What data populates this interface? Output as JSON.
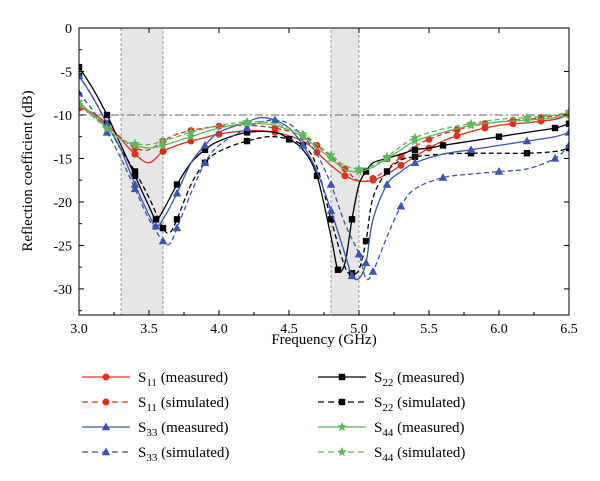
{
  "chart_data": {
    "type": "line",
    "title": "",
    "xlabel": "Frequency (GHz)",
    "ylabel": "Reflection coefficient (dB)",
    "xlim": [
      3.0,
      6.5
    ],
    "ylim": [
      -33,
      0
    ],
    "xticks": [
      "3.0",
      "3.5",
      "4.0",
      "4.5",
      "5.0",
      "5.5",
      "6.0",
      "6.5"
    ],
    "yticks": [
      "0",
      "-5",
      "-10",
      "-15",
      "-20",
      "-25",
      "-30"
    ],
    "reference_line_db": -10,
    "shaded_bands": [
      [
        3.3,
        3.6
      ],
      [
        4.8,
        5.0
      ]
    ],
    "grid": false,
    "legend_position": "bottom",
    "series": [
      {
        "name": "S11 (measured)",
        "label_main": "S",
        "label_sub": "11",
        "label_rest": " (measured)",
        "color": "#e0301e",
        "dash": "solid",
        "marker": "circle",
        "x": [
          3.0,
          3.1,
          3.2,
          3.3,
          3.4,
          3.5,
          3.6,
          3.7,
          3.8,
          3.9,
          4.0,
          4.2,
          4.4,
          4.6,
          4.7,
          4.8,
          4.9,
          5.0,
          5.1,
          5.2,
          5.3,
          5.4,
          5.5,
          5.6,
          5.7,
          5.8,
          5.9,
          6.0,
          6.1,
          6.2,
          6.3,
          6.4,
          6.5
        ],
        "y": [
          -9.0,
          -9.8,
          -11.0,
          -12.8,
          -14.5,
          -15.5,
          -14.2,
          -13.5,
          -13.0,
          -12.6,
          -12.2,
          -11.8,
          -12.0,
          -13.0,
          -14.3,
          -15.8,
          -17.0,
          -17.6,
          -17.5,
          -16.8,
          -15.8,
          -14.8,
          -13.8,
          -13.0,
          -12.4,
          -11.9,
          -11.5,
          -11.2,
          -11.0,
          -10.9,
          -10.7,
          -10.5,
          -10.0
        ]
      },
      {
        "name": "S11 (simulated)",
        "label_main": "S",
        "label_sub": "11",
        "label_rest": " (simulated)",
        "color": "#e0301e",
        "dash": "dashed",
        "marker": "circle",
        "x": [
          3.0,
          3.1,
          3.2,
          3.3,
          3.4,
          3.5,
          3.6,
          3.7,
          3.8,
          3.9,
          4.0,
          4.2,
          4.4,
          4.6,
          4.7,
          4.8,
          4.9,
          5.0,
          5.1,
          5.2,
          5.3,
          5.4,
          5.5,
          5.6,
          5.7,
          5.8,
          5.9,
          6.0,
          6.1,
          6.2,
          6.3,
          6.4,
          6.5
        ],
        "y": [
          -9.2,
          -10.0,
          -11.2,
          -12.6,
          -13.8,
          -14.0,
          -13.0,
          -12.2,
          -11.8,
          -11.5,
          -11.3,
          -11.2,
          -11.5,
          -12.4,
          -13.5,
          -14.8,
          -16.2,
          -17.6,
          -17.3,
          -16.2,
          -14.8,
          -13.6,
          -12.8,
          -12.2,
          -11.7,
          -11.3,
          -11.0,
          -10.8,
          -10.6,
          -10.5,
          -10.3,
          -10.1,
          -9.8
        ]
      },
      {
        "name": "S22 (measured)",
        "label_main": "S",
        "label_sub": "22",
        "label_rest": " (measured)",
        "color": "#000000",
        "dash": "solid",
        "marker": "square",
        "x": [
          3.0,
          3.1,
          3.2,
          3.3,
          3.4,
          3.5,
          3.55,
          3.6,
          3.7,
          3.8,
          3.9,
          4.0,
          4.2,
          4.4,
          4.5,
          4.6,
          4.7,
          4.8,
          4.85,
          4.9,
          4.95,
          5.0,
          5.05,
          5.1,
          5.2,
          5.3,
          5.4,
          5.5,
          5.6,
          5.8,
          6.0,
          6.2,
          6.4,
          6.5
        ],
        "y": [
          -4.5,
          -7.0,
          -10.0,
          -13.5,
          -17.0,
          -20.5,
          -22.0,
          -21.0,
          -18.0,
          -15.5,
          -14.0,
          -13.0,
          -12.0,
          -12.0,
          -12.8,
          -14.0,
          -17.0,
          -24.0,
          -27.8,
          -27.0,
          -22.0,
          -18.0,
          -16.5,
          -15.5,
          -15.0,
          -14.5,
          -14.0,
          -13.8,
          -13.5,
          -13.0,
          -12.5,
          -12.0,
          -11.5,
          -11.0
        ]
      },
      {
        "name": "S22 (simulated)",
        "label_main": "S",
        "label_sub": "22",
        "label_rest": " (simulated)",
        "color": "#000000",
        "dash": "dashed",
        "marker": "square",
        "x": [
          3.0,
          3.1,
          3.2,
          3.3,
          3.4,
          3.5,
          3.6,
          3.65,
          3.7,
          3.8,
          3.9,
          4.0,
          4.2,
          4.4,
          4.6,
          4.7,
          4.8,
          4.9,
          4.95,
          5.0,
          5.05,
          5.1,
          5.2,
          5.3,
          5.4,
          5.6,
          5.8,
          6.0,
          6.2,
          6.4,
          6.5
        ],
        "y": [
          -5.5,
          -8.0,
          -11.0,
          -14.0,
          -16.5,
          -19.5,
          -23.0,
          -23.5,
          -22.0,
          -18.0,
          -15.5,
          -14.2,
          -13.0,
          -12.5,
          -13.5,
          -16.0,
          -22.0,
          -27.5,
          -28.2,
          -27.8,
          -24.5,
          -19.5,
          -16.5,
          -15.2,
          -14.8,
          -14.5,
          -14.4,
          -14.4,
          -14.4,
          -14.2,
          -13.8
        ]
      },
      {
        "name": "S33 (measured)",
        "label_main": "S",
        "label_sub": "33",
        "label_rest": " (measured)",
        "color": "#3a55b4",
        "dash": "solid",
        "marker": "triangle",
        "x": [
          3.0,
          3.1,
          3.2,
          3.3,
          3.4,
          3.5,
          3.55,
          3.6,
          3.7,
          3.8,
          3.9,
          4.0,
          4.2,
          4.3,
          4.4,
          4.5,
          4.6,
          4.7,
          4.8,
          4.9,
          4.95,
          5.0,
          5.05,
          5.1,
          5.2,
          5.3,
          5.4,
          5.6,
          5.8,
          6.0,
          6.2,
          6.4,
          6.5
        ],
        "y": [
          -5.5,
          -8.0,
          -11.0,
          -14.0,
          -18.0,
          -21.5,
          -22.8,
          -22.0,
          -19.0,
          -15.5,
          -13.5,
          -12.0,
          -10.8,
          -10.3,
          -10.6,
          -11.5,
          -13.5,
          -16.5,
          -21.0,
          -26.0,
          -28.5,
          -28.8,
          -27.0,
          -22.0,
          -18.0,
          -16.5,
          -15.5,
          -14.5,
          -14.0,
          -13.5,
          -13.0,
          -12.5,
          -12.0
        ]
      },
      {
        "name": "S33 (simulated)",
        "label_main": "S",
        "label_sub": "33",
        "label_rest": " (simulated)",
        "color": "#3a55b4",
        "dash": "dashed",
        "marker": "triangle",
        "x": [
          3.0,
          3.1,
          3.2,
          3.3,
          3.4,
          3.5,
          3.6,
          3.65,
          3.7,
          3.8,
          3.9,
          4.0,
          4.2,
          4.3,
          4.4,
          4.5,
          4.6,
          4.7,
          4.8,
          4.9,
          5.0,
          5.05,
          5.1,
          5.2,
          5.3,
          5.4,
          5.6,
          5.8,
          6.0,
          6.2,
          6.4,
          6.5
        ],
        "y": [
          -7.5,
          -9.5,
          -12.0,
          -15.0,
          -18.5,
          -22.0,
          -24.5,
          -24.8,
          -23.0,
          -19.0,
          -15.5,
          -13.5,
          -11.5,
          -10.8,
          -10.6,
          -11.0,
          -12.5,
          -14.5,
          -18.0,
          -22.5,
          -26.0,
          -28.8,
          -28.0,
          -24.0,
          -20.5,
          -18.5,
          -17.2,
          -16.8,
          -16.5,
          -16.2,
          -15.0,
          -13.5
        ]
      },
      {
        "name": "S44 (measured)",
        "label_main": "S",
        "label_sub": "44",
        "label_rest": " (measured)",
        "color": "#5cb85c",
        "dash": "solid",
        "marker": "star",
        "x": [
          3.0,
          3.1,
          3.2,
          3.3,
          3.4,
          3.5,
          3.6,
          3.7,
          3.8,
          4.0,
          4.2,
          4.4,
          4.6,
          4.7,
          4.8,
          4.9,
          5.0,
          5.1,
          5.2,
          5.3,
          5.4,
          5.6,
          5.8,
          6.0,
          6.2,
          6.4,
          6.5
        ],
        "y": [
          -8.5,
          -10.0,
          -11.5,
          -12.8,
          -13.5,
          -13.8,
          -13.5,
          -13.0,
          -12.5,
          -11.5,
          -11.0,
          -11.2,
          -12.5,
          -13.8,
          -15.0,
          -16.3,
          -16.5,
          -16.0,
          -15.0,
          -14.0,
          -13.0,
          -12.0,
          -11.2,
          -10.8,
          -10.6,
          -10.3,
          -10.0
        ]
      },
      {
        "name": "S44 (simulated)",
        "label_main": "S",
        "label_sub": "44",
        "label_rest": " (simulated)",
        "color": "#5cb85c",
        "dash": "dashed",
        "marker": "star",
        "x": [
          3.0,
          3.1,
          3.2,
          3.3,
          3.4,
          3.5,
          3.6,
          3.7,
          3.8,
          4.0,
          4.2,
          4.4,
          4.6,
          4.7,
          4.8,
          4.9,
          5.0,
          5.1,
          5.2,
          5.3,
          5.4,
          5.6,
          5.8,
          6.0,
          6.2,
          6.4,
          6.5
        ],
        "y": [
          -8.8,
          -10.2,
          -11.6,
          -12.8,
          -13.3,
          -13.4,
          -13.0,
          -12.5,
          -12.0,
          -11.2,
          -10.8,
          -11.0,
          -12.2,
          -13.4,
          -14.6,
          -15.8,
          -16.2,
          -15.8,
          -14.8,
          -13.6,
          -12.6,
          -11.6,
          -11.0,
          -10.5,
          -10.3,
          -10.0,
          -9.6
        ]
      }
    ]
  }
}
